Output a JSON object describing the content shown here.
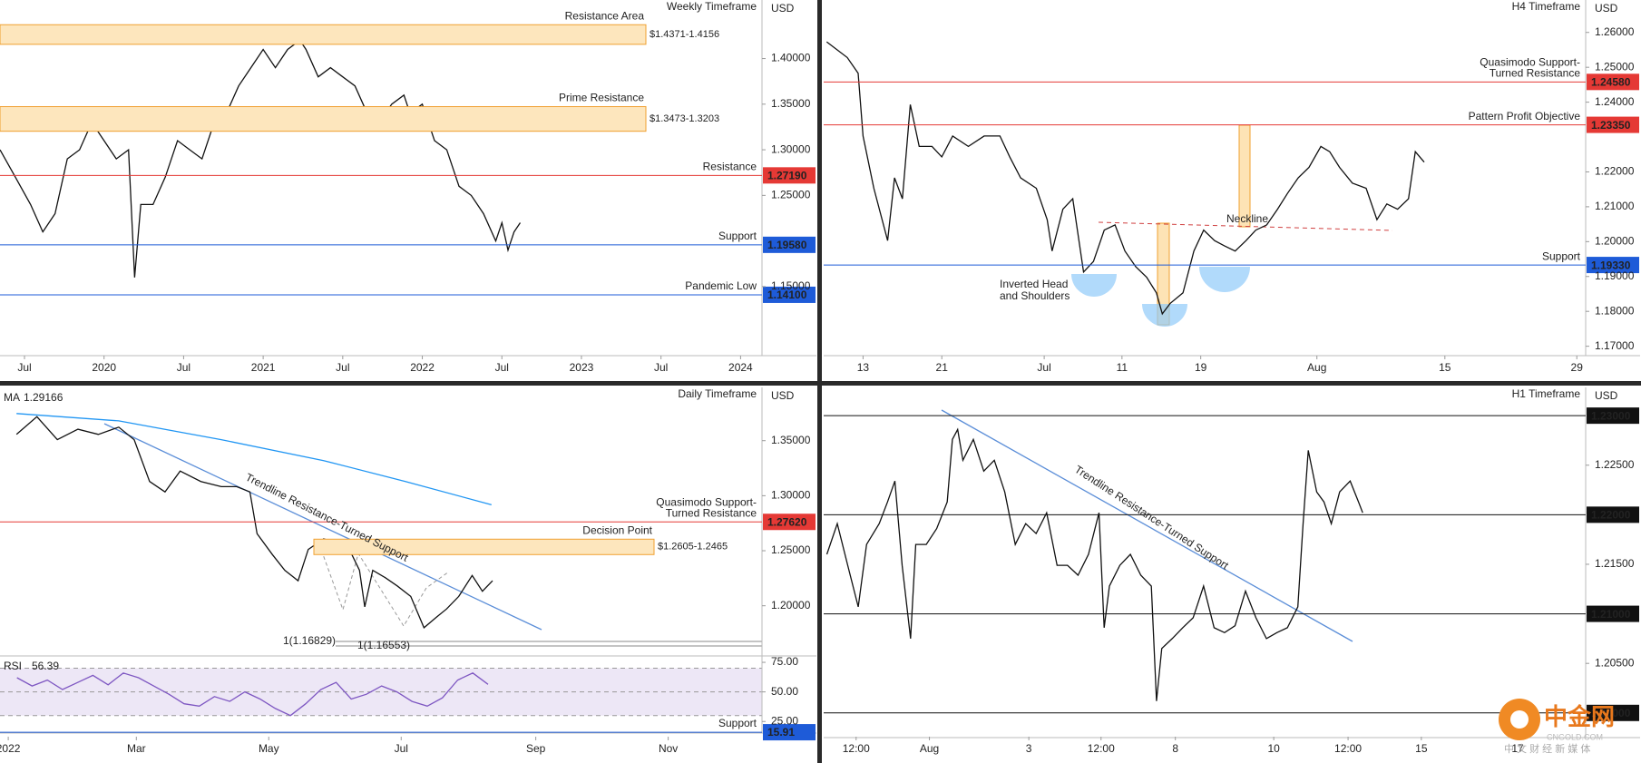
{
  "chart_data": [
    {
      "type": "line",
      "title": "Weekly Timeframe",
      "currency": "USD",
      "xlim": [
        0,
        249
      ],
      "ylim": [
        1.0743,
        1.4642
      ],
      "xticks": [
        {
          "value": 8,
          "label": "Jul"
        },
        {
          "value": 34,
          "label": "2020"
        },
        {
          "value": 60,
          "label": "Jul"
        },
        {
          "value": 86,
          "label": "2021"
        },
        {
          "value": 112,
          "label": "Jul"
        },
        {
          "value": 138,
          "label": "2022"
        },
        {
          "value": 164,
          "label": "Jul"
        },
        {
          "value": 190,
          "label": "2023"
        },
        {
          "value": 216,
          "label": "Jul"
        },
        {
          "value": 242,
          "label": "2024"
        }
      ],
      "yticks": [
        {
          "value": 1.15,
          "label": "1.15000"
        },
        {
          "value": 1.25,
          "label": "1.25000"
        },
        {
          "value": 1.3,
          "label": "1.30000"
        },
        {
          "value": 1.35,
          "label": "1.35000"
        },
        {
          "value": 1.4,
          "label": "1.40000"
        }
      ],
      "zones": [
        {
          "label": "Resistance Area",
          "range_label": "$1.4371-1.4156",
          "top": 1.4371,
          "bottom": 1.4156
        },
        {
          "label": "Prime Resistance",
          "range_label": "$1.3473-1.3203",
          "top": 1.3473,
          "bottom": 1.3203
        }
      ],
      "levels": [
        {
          "label": "Resistance",
          "value": 1.2719,
          "value_label": "1.27190",
          "color": "#e53935"
        },
        {
          "label": "Support",
          "value": 1.1958,
          "value_label": "1.19580",
          "color": "#1e5bd8"
        },
        {
          "label": "Pandemic Low",
          "value": 1.141,
          "value_label": "1.14100",
          "color": "#1e5bd8"
        }
      ],
      "series": [
        {
          "color": "#111111",
          "x": [
            0,
            5,
            10,
            14,
            18,
            22,
            26,
            30,
            34,
            38,
            42,
            44,
            46,
            50,
            54,
            58,
            62,
            66,
            70,
            74,
            78,
            82,
            86,
            90,
            94,
            98,
            100,
            104,
            108,
            112,
            116,
            120,
            124,
            128,
            132,
            134,
            138,
            142,
            146,
            150,
            154,
            158,
            162,
            164,
            166,
            168,
            170
          ],
          "values": [
            1.3,
            1.27,
            1.24,
            1.21,
            1.23,
            1.29,
            1.3,
            1.33,
            1.31,
            1.29,
            1.3,
            1.16,
            1.24,
            1.24,
            1.27,
            1.31,
            1.3,
            1.29,
            1.33,
            1.34,
            1.37,
            1.39,
            1.41,
            1.39,
            1.41,
            1.42,
            1.41,
            1.38,
            1.39,
            1.38,
            1.37,
            1.34,
            1.33,
            1.35,
            1.36,
            1.34,
            1.35,
            1.31,
            1.3,
            1.26,
            1.25,
            1.23,
            1.2,
            1.22,
            1.19,
            1.21,
            1.22
          ]
        }
      ]
    },
    {
      "type": "line",
      "title": "H4 Timeframe",
      "currency": "USD",
      "xlim": [
        0,
        77.4
      ],
      "ylim": [
        1.1673,
        1.2693
      ],
      "xticks": [
        {
          "value": 4.0,
          "label": "13"
        },
        {
          "value": 12.0,
          "label": "21"
        },
        {
          "value": 22.4,
          "label": "Jul"
        },
        {
          "value": 30.3,
          "label": "11"
        },
        {
          "value": 38.3,
          "label": "19"
        },
        {
          "value": 50.1,
          "label": "Aug"
        },
        {
          "value": 63.1,
          "label": "15"
        },
        {
          "value": 76.5,
          "label": "29"
        }
      ],
      "yticks": [
        {
          "value": 1.17,
          "label": "1.17000"
        },
        {
          "value": 1.18,
          "label": "1.18000"
        },
        {
          "value": 1.19,
          "label": "1.19000"
        },
        {
          "value": 1.2,
          "label": "1.20000"
        },
        {
          "value": 1.21,
          "label": "1.21000"
        },
        {
          "value": 1.22,
          "label": "1.22000"
        },
        {
          "value": 1.24,
          "label": "1.24000"
        },
        {
          "value": 1.25,
          "label": "1.25000"
        },
        {
          "value": 1.26,
          "label": "1.26000"
        }
      ],
      "levels": [
        {
          "label": [
            "Quasimodo Support-",
            "Turned Resistance"
          ],
          "value": 1.2458,
          "value_label": "1.24580",
          "color": "#e53935"
        },
        {
          "label": "Pattern Profit Objective",
          "value": 1.2335,
          "value_label": "1.23350",
          "color": "#e53935"
        },
        {
          "label": "Support",
          "value": 1.1933,
          "value_label": "1.19330",
          "color": "#1e5bd8"
        }
      ],
      "annotations": [
        {
          "text": "Neckline"
        },
        {
          "text": [
            "Inverted Head",
            "and Shoulders"
          ]
        }
      ],
      "series": [
        {
          "color": "#111111",
          "x": [
            0.3,
            2.4,
            3.5,
            4.0,
            5.1,
            6.5,
            7.2,
            8.0,
            8.8,
            9.7,
            11.0,
            12.0,
            13.1,
            14.7,
            16.3,
            17.9,
            18.9,
            20.0,
            21.6,
            22.7,
            23.2,
            24.3,
            25.3,
            26.4,
            27.4,
            28.5,
            29.6,
            30.6,
            31.7,
            32.8,
            33.8,
            34.4,
            35.2,
            36.5,
            37.6,
            38.6,
            39.7,
            40.7,
            41.8,
            42.9,
            43.9,
            45.0,
            46.1,
            47.1,
            48.2,
            49.3,
            50.5,
            51.4,
            52.4,
            53.7,
            55.1,
            56.2,
            57.2,
            58.3,
            59.4,
            60.1,
            61.0
          ],
          "values": [
            1.2573,
            1.2528,
            1.2483,
            1.2303,
            1.2153,
            1.2003,
            1.2183,
            1.2123,
            1.2393,
            1.2273,
            1.2273,
            1.2243,
            1.2303,
            1.2273,
            1.2303,
            1.2303,
            1.2243,
            1.2183,
            1.2153,
            1.2063,
            1.1973,
            1.2093,
            1.2123,
            1.1913,
            1.1943,
            1.2033,
            1.2048,
            1.1973,
            1.1928,
            1.1898,
            1.1853,
            1.1793,
            1.1823,
            1.1853,
            1.1973,
            1.2033,
            1.2003,
            1.1988,
            1.1973,
            1.2003,
            1.2033,
            1.2048,
            1.2093,
            1.2138,
            1.2183,
            1.2213,
            1.2273,
            1.2258,
            1.2213,
            1.2168,
            1.2153,
            1.2063,
            1.2108,
            1.2093,
            1.2123,
            1.2258,
            1.2228
          ]
        }
      ]
    },
    {
      "type": "line",
      "title": "Daily Timeframe",
      "currency": "USD",
      "xlim": [
        -3.8,
        347.2
      ],
      "ylim": [
        1.1544,
        1.3984
      ],
      "xticks": [
        {
          "value": 0,
          "label": "2022"
        },
        {
          "value": 59,
          "label": "Mar"
        },
        {
          "value": 120,
          "label": "May"
        },
        {
          "value": 181,
          "label": "Jul"
        },
        {
          "value": 243,
          "label": "Sep"
        },
        {
          "value": 304,
          "label": "Nov"
        }
      ],
      "yticks": [
        {
          "value": 1.2,
          "label": "1.20000"
        },
        {
          "value": 1.25,
          "label": "1.25000"
        },
        {
          "value": 1.3,
          "label": "1.30000"
        },
        {
          "value": 1.35,
          "label": "1.35000"
        }
      ],
      "zones": [
        {
          "label": "Decision Point",
          "range_label": "$1.2605-1.2465",
          "top": 1.2605,
          "bottom": 1.2465
        }
      ],
      "levels": [
        {
          "label": [
            "Quasimodo Support-",
            "Turned Resistance"
          ],
          "value": 1.2762,
          "value_label": "1.27620",
          "color": "#e53935"
        }
      ],
      "annotations": [
        {
          "text": "Trendline Resistance-Turned Support"
        },
        {
          "text": "1(1.16829)"
        },
        {
          "text": "1(1.16553)"
        }
      ],
      "series": [
        {
          "color": "#111111",
          "x": [
            3.8,
            13.2,
            22.6,
            32.1,
            41.5,
            50.9,
            58.0,
            65.1,
            72.2,
            79.2,
            88.7,
            98.1,
            105.2,
            111.3,
            114.6,
            121.7,
            127.4,
            133.5,
            138.2,
            145.3,
            150.0,
            157.1,
            161.8,
            164.2,
            167.9,
            173.6,
            179.2,
            185.4,
            191.5,
            197.2,
            201.9,
            207.5,
            213.7,
            218.4,
            223.1
          ],
          "values": [
            1.3557,
            1.3718,
            1.3509,
            1.3604,
            1.3557,
            1.3623,
            1.3509,
            1.3129,
            1.3034,
            1.3224,
            1.3129,
            1.3082,
            1.3082,
            1.3034,
            1.2654,
            1.2465,
            1.2322,
            1.2227,
            1.2512,
            1.2607,
            1.2579,
            1.2512,
            1.2322,
            1.199,
            1.2322,
            1.2256,
            1.218,
            1.2085,
            1.18,
            1.1895,
            1.1971,
            1.2085,
            1.2275,
            1.2132,
            1.2227
          ]
        },
        {
          "name": "MA",
          "value_label": "1.29166",
          "color": "#2196f3",
          "x": [
            3.8,
            50.9,
            98.1,
            145.3,
            183.0,
            222.6
          ],
          "values": [
            1.3747,
            1.368,
            1.3509,
            1.3319,
            1.3129,
            1.2917
          ]
        }
      ]
    },
    {
      "type": "line",
      "xlim": [
        -3.8,
        347.2
      ],
      "ylim": [
        15.2,
        80.4
      ],
      "band": [
        30,
        70
      ],
      "yticks": [
        {
          "value": 25,
          "label": "25.00"
        },
        {
          "value": 50,
          "label": "50.00"
        },
        {
          "value": 75,
          "label": "75.00"
        }
      ],
      "levels": [
        {
          "label": "Support",
          "value": 15.91,
          "value_label": "15.91",
          "color": "#1e5bd8"
        }
      ],
      "series": [
        {
          "name": "RSI",
          "value_label": "56.39",
          "color": "#7e57c2",
          "x": [
            4,
            11,
            18,
            25,
            32,
            39,
            46,
            53,
            60,
            67,
            74,
            81,
            88,
            95,
            102,
            109,
            116,
            123,
            130,
            137,
            144,
            151,
            158,
            165,
            172,
            179,
            186,
            193,
            200,
            207,
            214,
            221
          ],
          "values": [
            62,
            55,
            60,
            52,
            58,
            64,
            56,
            66,
            62,
            55,
            48,
            40,
            38,
            46,
            42,
            50,
            44,
            36,
            30,
            40,
            52,
            58,
            44,
            48,
            55,
            50,
            42,
            38,
            45,
            60,
            66,
            56.39
          ]
        }
      ]
    },
    {
      "type": "line",
      "title": "H1 Timeframe",
      "currency": "USD",
      "xlim": [
        0,
        364
      ],
      "ylim": [
        1.19751,
        1.23285
      ],
      "xticks": [
        {
          "value": 15.5,
          "label": "12:00"
        },
        {
          "value": 50.5,
          "label": "Aug"
        },
        {
          "value": 98,
          "label": "3"
        },
        {
          "value": 132.5,
          "label": "12:00"
        },
        {
          "value": 168,
          "label": "8"
        },
        {
          "value": 215,
          "label": "10"
        },
        {
          "value": 250.5,
          "label": "12:00"
        },
        {
          "value": 285.5,
          "label": "15"
        },
        {
          "value": 331.5,
          "label": "17"
        }
      ],
      "yticks": [
        {
          "value": 1.205,
          "label": "1.20500"
        },
        {
          "value": 1.215,
          "label": "1.21500"
        },
        {
          "value": 1.225,
          "label": "1.22500"
        }
      ],
      "levels": [
        {
          "value": 1.23,
          "value_label": "1.23000",
          "color": "#111111"
        },
        {
          "value": 1.22,
          "value_label": "1.22000",
          "color": "#111111"
        },
        {
          "value": 1.21,
          "value_label": "1.21000",
          "color": "#111111"
        },
        {
          "value": 1.2,
          "value_label": "1.20000",
          "color": "#111111"
        }
      ],
      "annotations": [
        {
          "text": "Trendline Resistance-Turned Support"
        }
      ],
      "series": [
        {
          "color": "#111111",
          "x": [
            1.5,
            6.5,
            11.5,
            16.5,
            20.5,
            26.5,
            30.5,
            34,
            37.5,
            41.5,
            44,
            49,
            54,
            59,
            61.5,
            64,
            66.5,
            71.5,
            76.5,
            81.5,
            86.5,
            91.5,
            96.5,
            101.5,
            106.5,
            111.5,
            116.5,
            121.5,
            126.5,
            131.5,
            134,
            136.5,
            141.5,
            146.5,
            151.5,
            156.5,
            159,
            161.5,
            166.5,
            171.5,
            176.5,
            181.5,
            186.5,
            191.5,
            196.5,
            201.5,
            206.5,
            211.5,
            216.5,
            221.5,
            226.5,
            229,
            231.5,
            235.5,
            239,
            242.5,
            246.5,
            251.5,
            255.5,
            257.5
          ],
          "values": [
            1.216,
            1.2191,
            1.2149,
            1.2107,
            1.217,
            1.2191,
            1.2213,
            1.2234,
            1.2149,
            1.2075,
            1.217,
            1.217,
            1.2186,
            1.2213,
            1.2276,
            1.2286,
            1.2255,
            1.2276,
            1.2244,
            1.2255,
            1.2223,
            1.217,
            1.2191,
            1.2181,
            1.2202,
            1.2149,
            1.2149,
            1.2139,
            1.216,
            1.2202,
            1.2086,
            1.2128,
            1.2149,
            1.216,
            1.2139,
            1.2128,
            1.2012,
            1.2065,
            1.2075,
            1.2086,
            1.2096,
            1.2128,
            1.2086,
            1.2081,
            1.2088,
            1.2123,
            1.2096,
            1.2075,
            1.2081,
            1.2086,
            1.2107,
            1.2191,
            1.2265,
            1.2223,
            1.2213,
            1.2191,
            1.2223,
            1.2234,
            1.2213,
            1.2202
          ]
        }
      ]
    }
  ],
  "watermark": {
    "name": "中金网",
    "site": "CNGOLD.COM",
    "tagline": "中 文 财 经 新 媒 体"
  }
}
